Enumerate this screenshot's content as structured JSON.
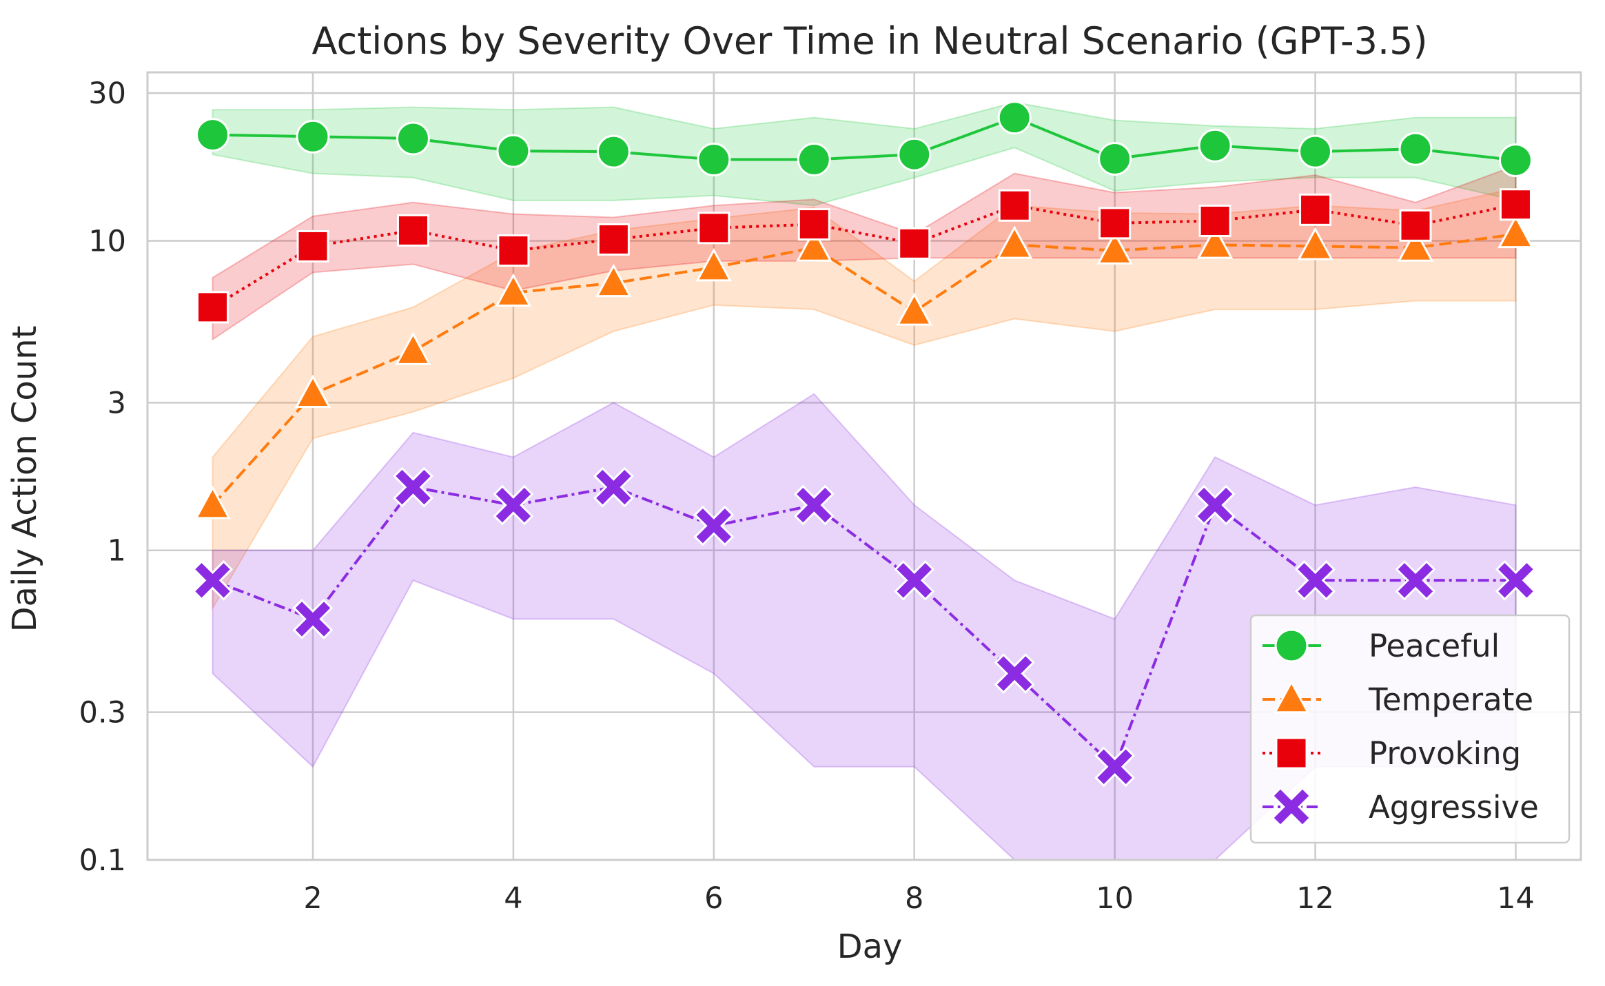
{
  "chart_data": {
    "type": "line",
    "title": "Actions by Severity Over Time in Neutral Scenario (GPT-3.5)",
    "xlabel": "Day",
    "ylabel": "Daily Action Count",
    "yscale": "log",
    "xlim": [
      0.35,
      14.65
    ],
    "ylim": [
      0.1,
      35
    ],
    "xticks": [
      2,
      4,
      6,
      8,
      10,
      12,
      14
    ],
    "xtick_labels": [
      "2",
      "4",
      "6",
      "8",
      "10",
      "12",
      "14"
    ],
    "yticks": [
      0.1,
      0.3,
      1,
      3,
      10,
      30
    ],
    "ytick_labels": [
      "0.1",
      "0.3",
      "1",
      "3",
      "10",
      "30"
    ],
    "grid": true,
    "legend_position": "bottom-right",
    "x": [
      1,
      2,
      3,
      4,
      5,
      6,
      7,
      8,
      9,
      10,
      11,
      12,
      13,
      14
    ],
    "series": [
      {
        "name": "Peaceful",
        "color": "#1ec63c",
        "line_style": "solid",
        "marker": "circle",
        "values": [
          22.0,
          21.7,
          21.4,
          19.5,
          19.4,
          18.3,
          18.3,
          19.0,
          25.0,
          18.4,
          20.3,
          19.4,
          19.8,
          18.2
        ],
        "ci_low": [
          19.0,
          16.5,
          16.0,
          13.5,
          13.5,
          14.0,
          13.0,
          16.0,
          20.0,
          14.5,
          15.5,
          16.0,
          16.0,
          13.5
        ],
        "ci_high": [
          26.5,
          26.5,
          27.0,
          26.5,
          27.0,
          23.0,
          25.0,
          23.0,
          28.0,
          24.5,
          23.5,
          23.0,
          25.0,
          25.0
        ]
      },
      {
        "name": "Temperate",
        "color": "#ff7b0f",
        "line_style": "dashed",
        "marker": "triangle",
        "values": [
          1.4,
          3.2,
          4.4,
          6.8,
          7.3,
          8.2,
          9.5,
          5.9,
          9.7,
          9.3,
          9.7,
          9.6,
          9.5,
          10.5
        ],
        "ci_low": [
          0.65,
          2.3,
          2.8,
          3.6,
          5.1,
          6.2,
          6.0,
          4.6,
          5.6,
          5.1,
          6.0,
          6.0,
          6.4,
          6.4
        ],
        "ci_high": [
          2.0,
          4.9,
          6.1,
          9.2,
          10.8,
          11.8,
          12.8,
          7.4,
          13.0,
          12.3,
          12.2,
          13.0,
          12.5,
          14.8
        ]
      },
      {
        "name": "Provoking",
        "color": "#e8000b",
        "line_style": "dotted",
        "marker": "square",
        "values": [
          6.1,
          9.6,
          10.8,
          9.3,
          10.1,
          11.0,
          11.3,
          9.8,
          13.0,
          11.4,
          11.6,
          12.6,
          11.2,
          13.1
        ],
        "ci_low": [
          4.8,
          7.9,
          8.4,
          6.9,
          8.0,
          8.6,
          8.6,
          8.8,
          8.8,
          8.8,
          8.8,
          8.8,
          8.8,
          8.8
        ],
        "ci_high": [
          7.6,
          12.0,
          13.3,
          12.2,
          11.9,
          13.0,
          13.6,
          10.5,
          16.5,
          14.3,
          14.9,
          16.3,
          13.3,
          17.5
        ]
      },
      {
        "name": "Aggressive",
        "color": "#8b2be2",
        "line_style": "dashdot",
        "marker": "x",
        "values": [
          0.8,
          0.6,
          1.6,
          1.4,
          1.6,
          1.2,
          1.4,
          0.8,
          0.4,
          0.2,
          1.4,
          0.8,
          0.8,
          0.8
        ],
        "ci_low": [
          0.4,
          0.2,
          0.8,
          0.6,
          0.6,
          0.4,
          0.2,
          0.2,
          0.1,
          0.1,
          0.1,
          0.2,
          0.2,
          0.2
        ],
        "ci_high": [
          1.0,
          1.0,
          2.4,
          2.0,
          3.0,
          2.0,
          3.2,
          1.4,
          0.8,
          0.6,
          2.0,
          1.4,
          1.6,
          1.4
        ]
      }
    ]
  }
}
